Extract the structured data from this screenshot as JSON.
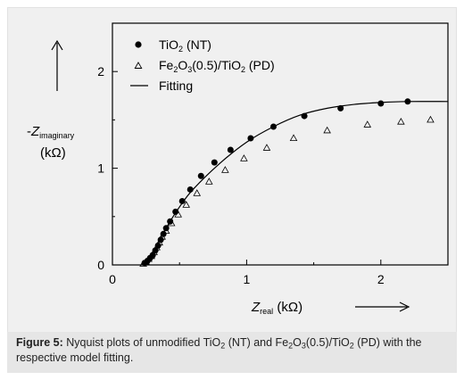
{
  "chart_data": {
    "type": "scatter",
    "x_label_symbol": "Z",
    "x_label_sub": "real",
    "x_label_unit": " (kΩ)",
    "y_label_prefix": "-",
    "y_label_symbol": "Z",
    "y_label_sub": "imaginary",
    "y_label_unit": "(kΩ)",
    "xlim": [
      0,
      2.5
    ],
    "ylim": [
      0,
      2.5
    ],
    "x_ticks": [
      0,
      1,
      2
    ],
    "y_ticks": [
      0,
      1,
      2
    ],
    "legend_position": "top-left",
    "series": [
      {
        "name_parts": [
          "TiO",
          "2",
          " (NT)"
        ],
        "marker": "filled-circle",
        "x": [
          0.24,
          0.26,
          0.28,
          0.3,
          0.32,
          0.34,
          0.36,
          0.38,
          0.4,
          0.43,
          0.47,
          0.52,
          0.58,
          0.66,
          0.76,
          0.88,
          1.03,
          1.2,
          1.43,
          1.7,
          2.0,
          2.2
        ],
        "y": [
          0.02,
          0.04,
          0.07,
          0.1,
          0.15,
          0.2,
          0.26,
          0.32,
          0.38,
          0.45,
          0.55,
          0.66,
          0.78,
          0.92,
          1.06,
          1.19,
          1.31,
          1.43,
          1.54,
          1.62,
          1.67,
          1.69
        ]
      },
      {
        "name_parts": [
          "Fe",
          "2",
          "O",
          "3",
          "(0.5)/TiO",
          "2",
          " (PD)"
        ],
        "marker": "open-triangle",
        "x": [
          0.23,
          0.25,
          0.27,
          0.29,
          0.31,
          0.33,
          0.35,
          0.37,
          0.4,
          0.44,
          0.49,
          0.55,
          0.63,
          0.72,
          0.84,
          0.98,
          1.15,
          1.35,
          1.6,
          1.9,
          2.15,
          2.37
        ],
        "y": [
          0.01,
          0.03,
          0.06,
          0.09,
          0.13,
          0.18,
          0.23,
          0.29,
          0.35,
          0.43,
          0.52,
          0.62,
          0.74,
          0.86,
          0.98,
          1.1,
          1.21,
          1.31,
          1.39,
          1.45,
          1.48,
          1.5
        ]
      },
      {
        "name": "Fitting",
        "marker": "line",
        "x": [
          0.22,
          0.3,
          0.4,
          0.5,
          0.6,
          0.8,
          1.0,
          1.2,
          1.4,
          1.6,
          1.8,
          2.0,
          2.2,
          2.5
        ],
        "y": [
          0.0,
          0.12,
          0.38,
          0.6,
          0.78,
          1.05,
          1.27,
          1.43,
          1.55,
          1.62,
          1.66,
          1.68,
          1.69,
          1.69
        ]
      }
    ]
  },
  "caption": {
    "figure_label": "Figure 5:",
    "text_parts": [
      " Nyquist plots of unmodified TiO",
      "2",
      " (NT) and Fe",
      "2",
      "O",
      "3",
      "(0.5)/TiO",
      "2",
      " (PD) with the respective model fitting."
    ]
  }
}
